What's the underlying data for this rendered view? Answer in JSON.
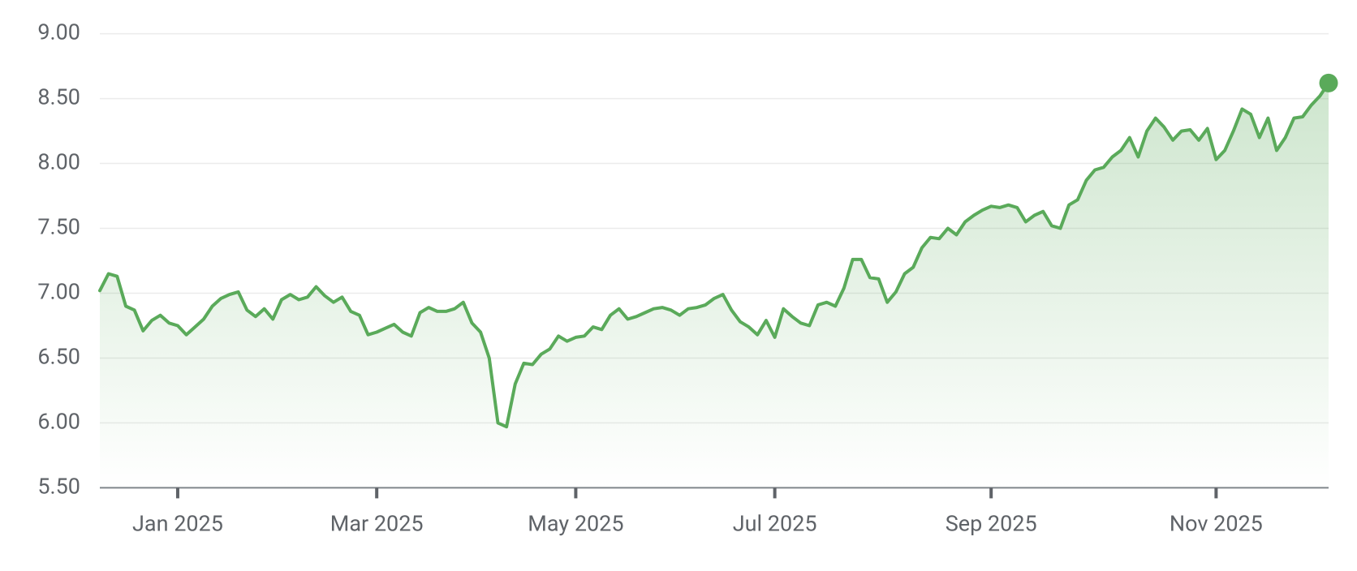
{
  "chart_data": {
    "type": "line",
    "categories": [
      null,
      null,
      null,
      null,
      null,
      null,
      null,
      null,
      null,
      "Jan 2025",
      null,
      null,
      null,
      null,
      null,
      null,
      null,
      null,
      null,
      null,
      null,
      null,
      null,
      null,
      null,
      null,
      null,
      null,
      null,
      null,
      null,
      null,
      "Mar 2025",
      null,
      null,
      null,
      null,
      null,
      null,
      null,
      null,
      null,
      null,
      null,
      null,
      null,
      null,
      null,
      null,
      null,
      null,
      null,
      null,
      null,
      null,
      "May 2025",
      null,
      null,
      null,
      null,
      null,
      null,
      null,
      null,
      null,
      null,
      null,
      null,
      null,
      null,
      null,
      null,
      null,
      null,
      null,
      null,
      null,
      null,
      "Jul 2025",
      null,
      null,
      null,
      null,
      null,
      null,
      null,
      null,
      null,
      null,
      null,
      null,
      null,
      null,
      null,
      null,
      null,
      null,
      null,
      null,
      null,
      null,
      null,
      null,
      "Sep 2025",
      null,
      null,
      null,
      null,
      null,
      null,
      null,
      null,
      null,
      null,
      null,
      null,
      null,
      null,
      null,
      null,
      null,
      null,
      null,
      null,
      null,
      null,
      null,
      null,
      null,
      "Nov 2025",
      null,
      null,
      null,
      null,
      null,
      null,
      null,
      null,
      null,
      null,
      null,
      null,
      null
    ],
    "series": [
      {
        "color": "#5aaa5a",
        "values": [
          7.02,
          7.15,
          7.13,
          6.9,
          6.87,
          6.71,
          6.79,
          6.83,
          6.77,
          6.75,
          6.68,
          6.74,
          6.8,
          6.9,
          6.96,
          6.99,
          7.01,
          6.87,
          6.82,
          6.88,
          6.8,
          6.95,
          6.99,
          6.95,
          6.97,
          7.05,
          6.98,
          6.93,
          6.97,
          6.86,
          6.83,
          6.68,
          6.7,
          6.73,
          6.76,
          6.7,
          6.67,
          6.85,
          6.89,
          6.86,
          6.86,
          6.88,
          6.93,
          6.77,
          6.7,
          6.5,
          6.0,
          5.97,
          6.3,
          6.46,
          6.45,
          6.53,
          6.57,
          6.67,
          6.63,
          6.66,
          6.67,
          6.74,
          6.72,
          6.83,
          6.88,
          6.8,
          6.82,
          6.85,
          6.88,
          6.89,
          6.87,
          6.83,
          6.88,
          6.89,
          6.91,
          6.96,
          6.99,
          6.87,
          6.78,
          6.74,
          6.68,
          6.79,
          6.66,
          6.88,
          6.82,
          6.77,
          6.75,
          6.91,
          6.93,
          6.9,
          7.04,
          7.26,
          7.26,
          7.12,
          7.11,
          6.93,
          7.01,
          7.15,
          7.2,
          7.35,
          7.43,
          7.42,
          7.5,
          7.45,
          7.55,
          7.6,
          7.64,
          7.67,
          7.66,
          7.68,
          7.66,
          7.55,
          7.6,
          7.63,
          7.52,
          7.5,
          7.68,
          7.72,
          7.87,
          7.95,
          7.97,
          8.05,
          8.1,
          8.2,
          8.05,
          8.25,
          8.35,
          8.28,
          8.18,
          8.25,
          8.26,
          8.18,
          8.27,
          8.03,
          8.1,
          8.25,
          8.42,
          8.38,
          8.2,
          8.35,
          8.1,
          8.2,
          8.35,
          8.36,
          8.45,
          8.52,
          8.62
        ]
      }
    ],
    "ylim": [
      5.5,
      9
    ],
    "yticks": [
      {
        "value": 5.5,
        "label": "5.50"
      },
      {
        "value": 6,
        "label": "6.00"
      },
      {
        "value": 6.5,
        "label": "6.50"
      },
      {
        "value": 7,
        "label": "7.00"
      },
      {
        "value": 7.5,
        "label": "7.50"
      },
      {
        "value": 8,
        "label": "8.00"
      },
      {
        "value": 8.5,
        "label": "8.50"
      },
      {
        "value": 9,
        "label": "9.00"
      }
    ],
    "grid": true
  }
}
